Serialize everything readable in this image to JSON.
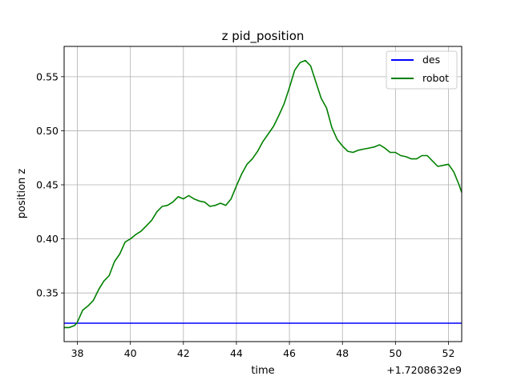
{
  "chart_data": {
    "type": "line",
    "title": "z pid_position",
    "xlabel": "time",
    "ylabel": "position z",
    "x_offset_label": "+1.7208632e9",
    "xlim": [
      37.5,
      52.5
    ],
    "ylim": [
      0.305,
      0.578
    ],
    "xticks": [
      38,
      40,
      42,
      44,
      46,
      48,
      50,
      52
    ],
    "yticks": [
      0.35,
      0.4,
      0.45,
      0.5,
      0.55
    ],
    "xtick_labels": [
      "38",
      "40",
      "42",
      "44",
      "46",
      "48",
      "50",
      "52"
    ],
    "ytick_labels": [
      "0.35",
      "0.40",
      "0.45",
      "0.50",
      "0.55"
    ],
    "grid": true,
    "legend_position": "top-right",
    "series": [
      {
        "name": "des",
        "color": "#0000ff",
        "x": [
          37.5,
          52.5
        ],
        "y": [
          0.322,
          0.322
        ]
      },
      {
        "name": "robot",
        "color": "#008000",
        "x": [
          37.5,
          37.7,
          37.9,
          38.0,
          38.2,
          38.4,
          38.6,
          38.8,
          39.0,
          39.2,
          39.4,
          39.6,
          39.8,
          40.0,
          40.2,
          40.4,
          40.6,
          40.8,
          41.0,
          41.2,
          41.4,
          41.6,
          41.8,
          42.0,
          42.2,
          42.4,
          42.6,
          42.8,
          43.0,
          43.2,
          43.4,
          43.6,
          43.8,
          44.0,
          44.2,
          44.4,
          44.6,
          44.8,
          45.0,
          45.2,
          45.4,
          45.6,
          45.8,
          46.0,
          46.2,
          46.4,
          46.6,
          46.8,
          47.0,
          47.2,
          47.4,
          47.6,
          47.8,
          48.0,
          48.2,
          48.4,
          48.6,
          48.8,
          49.0,
          49.2,
          49.4,
          49.6,
          49.8,
          50.0,
          50.2,
          50.4,
          50.6,
          50.8,
          51.0,
          51.2,
          51.4,
          51.6,
          51.8,
          52.0,
          52.2,
          52.4,
          52.5
        ],
        "y": [
          0.318,
          0.318,
          0.32,
          0.323,
          0.334,
          0.338,
          0.343,
          0.353,
          0.361,
          0.366,
          0.379,
          0.386,
          0.397,
          0.4,
          0.404,
          0.407,
          0.412,
          0.417,
          0.425,
          0.43,
          0.431,
          0.434,
          0.439,
          0.437,
          0.44,
          0.437,
          0.435,
          0.434,
          0.43,
          0.431,
          0.433,
          0.431,
          0.437,
          0.449,
          0.46,
          0.469,
          0.474,
          0.481,
          0.49,
          0.497,
          0.504,
          0.514,
          0.525,
          0.54,
          0.556,
          0.563,
          0.565,
          0.56,
          0.545,
          0.53,
          0.521,
          0.503,
          0.492,
          0.486,
          0.481,
          0.48,
          0.482,
          0.483,
          0.484,
          0.485,
          0.487,
          0.484,
          0.48,
          0.48,
          0.477,
          0.476,
          0.474,
          0.474,
          0.477,
          0.477,
          0.472,
          0.467,
          0.468,
          0.469,
          0.462,
          0.45,
          0.443
        ]
      }
    ]
  }
}
